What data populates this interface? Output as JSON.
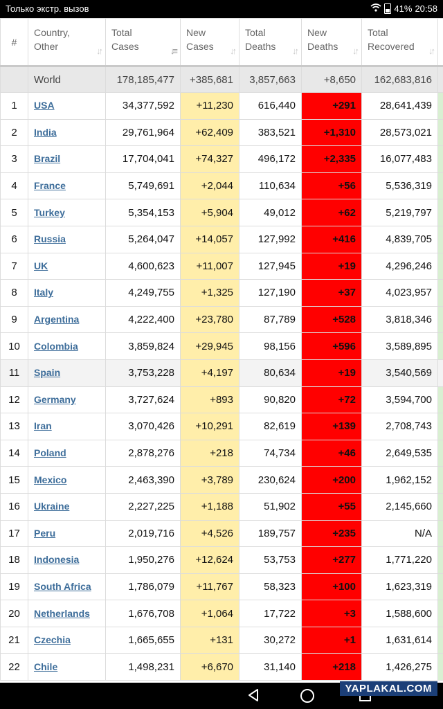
{
  "status_bar": {
    "left_text": "Только экстр. вызов",
    "battery": "41%",
    "time": "20:58"
  },
  "table": {
    "headers": {
      "index": "#",
      "country": [
        "Country,",
        "Other"
      ],
      "total_cases": [
        "Total",
        "Cases"
      ],
      "new_cases": [
        "New",
        "Cases"
      ],
      "total_deaths": [
        "Total",
        "Deaths"
      ],
      "new_deaths": [
        "New",
        "Deaths"
      ],
      "total_recovered": [
        "Total",
        "Recovered"
      ]
    },
    "world": {
      "name": "World",
      "total_cases": "178,185,477",
      "new_cases": "+385,681",
      "total_deaths": "3,857,663",
      "new_deaths": "+8,650",
      "total_recovered": "162,683,816"
    },
    "rows": [
      {
        "idx": "1",
        "name": "USA",
        "total_cases": "34,377,592",
        "new_cases": "+11,230",
        "total_deaths": "616,440",
        "new_deaths": "+291",
        "total_recovered": "28,641,439"
      },
      {
        "idx": "2",
        "name": "India",
        "total_cases": "29,761,964",
        "new_cases": "+62,409",
        "total_deaths": "383,521",
        "new_deaths": "+1,310",
        "total_recovered": "28,573,021"
      },
      {
        "idx": "3",
        "name": "Brazil",
        "total_cases": "17,704,041",
        "new_cases": "+74,327",
        "total_deaths": "496,172",
        "new_deaths": "+2,335",
        "total_recovered": "16,077,483"
      },
      {
        "idx": "4",
        "name": "France",
        "total_cases": "5,749,691",
        "new_cases": "+2,044",
        "total_deaths": "110,634",
        "new_deaths": "+56",
        "total_recovered": "5,536,319"
      },
      {
        "idx": "5",
        "name": "Turkey",
        "total_cases": "5,354,153",
        "new_cases": "+5,904",
        "total_deaths": "49,012",
        "new_deaths": "+62",
        "total_recovered": "5,219,797"
      },
      {
        "idx": "6",
        "name": "Russia",
        "total_cases": "5,264,047",
        "new_cases": "+14,057",
        "total_deaths": "127,992",
        "new_deaths": "+416",
        "total_recovered": "4,839,705"
      },
      {
        "idx": "7",
        "name": "UK",
        "total_cases": "4,600,623",
        "new_cases": "+11,007",
        "total_deaths": "127,945",
        "new_deaths": "+19",
        "total_recovered": "4,296,246"
      },
      {
        "idx": "8",
        "name": "Italy",
        "total_cases": "4,249,755",
        "new_cases": "+1,325",
        "total_deaths": "127,190",
        "new_deaths": "+37",
        "total_recovered": "4,023,957"
      },
      {
        "idx": "9",
        "name": "Argentina",
        "total_cases": "4,222,400",
        "new_cases": "+23,780",
        "total_deaths": "87,789",
        "new_deaths": "+528",
        "total_recovered": "3,818,346"
      },
      {
        "idx": "10",
        "name": "Colombia",
        "total_cases": "3,859,824",
        "new_cases": "+29,945",
        "total_deaths": "98,156",
        "new_deaths": "+596",
        "total_recovered": "3,589,895"
      },
      {
        "idx": "11",
        "name": "Spain",
        "total_cases": "3,753,228",
        "new_cases": "+4,197",
        "total_deaths": "80,634",
        "new_deaths": "+19",
        "total_recovered": "3,540,569",
        "highlight": true
      },
      {
        "idx": "12",
        "name": "Germany",
        "total_cases": "3,727,624",
        "new_cases": "+893",
        "total_deaths": "90,820",
        "new_deaths": "+72",
        "total_recovered": "3,594,700"
      },
      {
        "idx": "13",
        "name": "Iran",
        "total_cases": "3,070,426",
        "new_cases": "+10,291",
        "total_deaths": "82,619",
        "new_deaths": "+139",
        "total_recovered": "2,708,743"
      },
      {
        "idx": "14",
        "name": "Poland",
        "total_cases": "2,878,276",
        "new_cases": "+218",
        "total_deaths": "74,734",
        "new_deaths": "+46",
        "total_recovered": "2,649,535"
      },
      {
        "idx": "15",
        "name": "Mexico",
        "total_cases": "2,463,390",
        "new_cases": "+3,789",
        "total_deaths": "230,624",
        "new_deaths": "+200",
        "total_recovered": "1,962,152"
      },
      {
        "idx": "16",
        "name": "Ukraine",
        "total_cases": "2,227,225",
        "new_cases": "+1,188",
        "total_deaths": "51,902",
        "new_deaths": "+55",
        "total_recovered": "2,145,660"
      },
      {
        "idx": "17",
        "name": "Peru",
        "total_cases": "2,019,716",
        "new_cases": "+4,526",
        "total_deaths": "189,757",
        "new_deaths": "+235",
        "total_recovered": "N/A"
      },
      {
        "idx": "18",
        "name": "Indonesia",
        "total_cases": "1,950,276",
        "new_cases": "+12,624",
        "total_deaths": "53,753",
        "new_deaths": "+277",
        "total_recovered": "1,771,220"
      },
      {
        "idx": "19",
        "name": "South Africa",
        "total_cases": "1,786,079",
        "new_cases": "+11,767",
        "total_deaths": "58,323",
        "new_deaths": "+100",
        "total_recovered": "1,623,319"
      },
      {
        "idx": "20",
        "name": "Netherlands",
        "total_cases": "1,676,708",
        "new_cases": "+1,064",
        "total_deaths": "17,722",
        "new_deaths": "+3",
        "total_recovered": "1,588,600"
      },
      {
        "idx": "21",
        "name": "Czechia",
        "total_cases": "1,665,655",
        "new_cases": "+131",
        "total_deaths": "30,272",
        "new_deaths": "+1",
        "total_recovered": "1,631,614"
      },
      {
        "idx": "22",
        "name": "Chile",
        "total_cases": "1,498,231",
        "new_cases": "+6,670",
        "total_deaths": "31,140",
        "new_deaths": "+218",
        "total_recovered": "1,426,275"
      }
    ]
  },
  "watermark": "YAPLAKAL.COM",
  "colors": {
    "new_cases_bg": "#ffeeaa",
    "new_deaths_bg": "#ff0000",
    "link": "#3d6d9a",
    "world_row_bg": "#e8e8e8"
  },
  "icons": [
    "wifi-icon",
    "battery-icon",
    "nav-back-icon",
    "nav-home-icon",
    "nav-recent-icon",
    "sort-icon"
  ]
}
